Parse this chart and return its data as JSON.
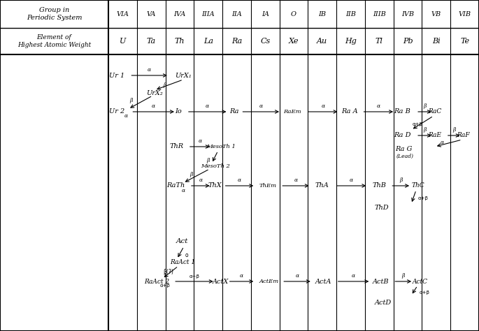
{
  "fig_width": 6.85,
  "fig_height": 4.74,
  "bg_color": "#f5f0e8",
  "title_left": "Group in\nPeriodic System",
  "title_left2": "Element of\nHighest Atomic Weight",
  "col_headers": [
    "VIA",
    "VA",
    "IVA",
    "IIIA",
    "IIA",
    "IA",
    "O",
    "IB",
    "IIB",
    "IIIB",
    "IVB",
    "VB",
    "VIB"
  ],
  "col_elements": [
    "U",
    "Ta",
    "Th",
    "La",
    "Ra",
    "Cs",
    "Xe",
    "Au",
    "Hg",
    "Tl",
    "Pb",
    "Bi",
    "Te"
  ]
}
